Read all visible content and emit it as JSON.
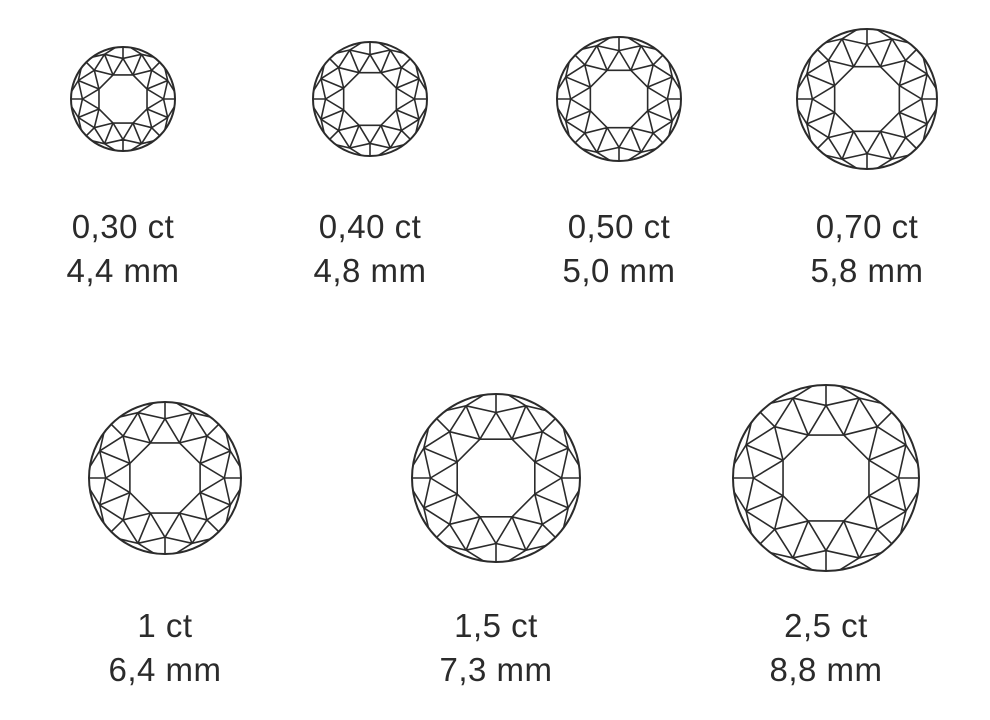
{
  "diagram": {
    "line_color": "#2b2b2b",
    "background": "#ffffff",
    "diamonds": [
      {
        "carat": "0,30 ct",
        "diameter": "4,4 mm"
      },
      {
        "carat": "0,40 ct",
        "diameter": "4,8 mm"
      },
      {
        "carat": "0,50 ct",
        "diameter": "5,0 mm"
      },
      {
        "carat": "0,70 ct",
        "diameter": "5,8 mm"
      },
      {
        "carat": "1 ct",
        "diameter": "6,4 mm"
      },
      {
        "carat": "1,5 ct",
        "diameter": "7,3 mm"
      },
      {
        "carat": "2,5 ct",
        "diameter": "8,8 mm"
      }
    ]
  }
}
